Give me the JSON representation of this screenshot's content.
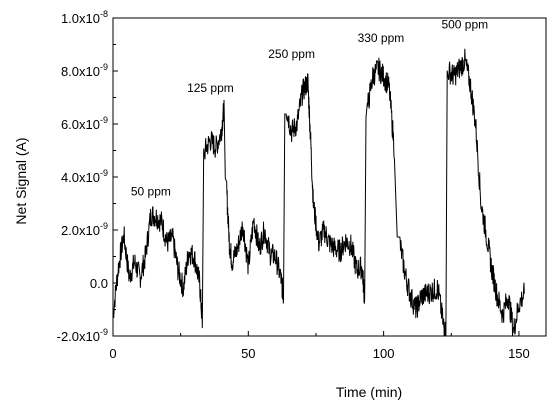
{
  "chart_data": {
    "type": "line",
    "title": "",
    "xlabel": "Time (min)",
    "ylabel": "Net Signal (A)",
    "xlim": [
      0,
      160
    ],
    "ylim": [
      -2e-09,
      1e-08
    ],
    "grid": false,
    "x_ticks": [
      0,
      50,
      100,
      150
    ],
    "x_tick_labels": [
      "0",
      "50",
      "100",
      "150"
    ],
    "y_ticks": [
      -2e-09,
      0,
      2e-09,
      4e-09,
      6e-09,
      8e-09,
      1e-08
    ],
    "y_tick_labels": [
      "-2.0x10",
      "0.0",
      "2.0x10",
      "4.0x10",
      "6.0x10",
      "8.0x10",
      "1.0x10"
    ],
    "y_tick_exponents": [
      "-9",
      "",
      "-9",
      "-9",
      "-9",
      "-9",
      "-8"
    ],
    "annotations": [
      {
        "text": "50 ppm",
        "x": 14,
        "y": 3.3e-09
      },
      {
        "text": "125 ppm",
        "x": 36,
        "y": 7.2e-09
      },
      {
        "text": "250 ppm",
        "x": 66,
        "y": 8.5e-09
      },
      {
        "text": "330 ppm",
        "x": 99,
        "y": 9.1e-09
      },
      {
        "text": "500 ppm",
        "x": 130,
        "y": 9.6e-09
      }
    ],
    "series": [
      {
        "color": "#000000",
        "x": [
          0,
          2,
          4,
          6,
          8,
          10,
          12,
          14,
          16,
          18,
          20,
          22,
          24,
          26,
          28,
          30,
          32,
          33,
          34,
          36,
          38,
          40,
          41,
          42,
          43,
          44,
          46,
          48,
          50,
          52,
          54,
          56,
          58,
          60,
          62,
          63,
          64,
          66,
          68,
          70,
          72,
          73,
          74,
          76,
          78,
          80,
          82,
          84,
          86,
          88,
          90,
          92,
          93,
          94,
          96,
          98,
          100,
          102,
          104,
          106,
          108,
          110,
          112,
          114,
          116,
          118,
          120,
          122,
          123,
          124,
          126,
          128,
          130,
          132,
          134,
          136,
          138,
          140,
          142,
          144,
          146,
          148,
          150,
          152
        ],
        "y": [
          -1.2e-09,
          6e-10,
          1.8e-09,
          2e-10,
          8e-10,
          2e-10,
          1e-09,
          2.6e-09,
          2.5e-09,
          2.3e-09,
          1.5e-09,
          1.7e-09,
          5e-10,
          -2e-10,
          1.2e-09,
          1e-09,
          0.0,
          -1.5e-09,
          5e-09,
          5.4e-09,
          5.1e-09,
          5.7e-09,
          6.6e-09,
          3.5e-09,
          1.5e-09,
          8e-10,
          1.3e-09,
          2.2e-09,
          6e-10,
          2.4e-09,
          1.3e-09,
          2e-09,
          1.1e-09,
          1e-09,
          2e-10,
          -5e-10,
          6.6e-09,
          5.7e-09,
          6e-09,
          7.2e-09,
          7.6e-09,
          5.5e-09,
          3e-09,
          1.5e-09,
          2e-09,
          1.5e-09,
          1.3e-09,
          1.2e-09,
          1.6e-09,
          1.4e-09,
          5e-10,
          6e-10,
          -6e-10,
          6.6e-09,
          7.8e-09,
          8.1e-09,
          7.8e-09,
          7.4e-09,
          5e-09,
          1.5e-09,
          3e-10,
          -5e-10,
          -1e-09,
          -5e-10,
          -4e-10,
          -3e-10,
          -2e-10,
          -1.5e-09,
          -2e-09,
          8e-09,
          7.8e-09,
          8.1e-09,
          8.4e-09,
          7.5e-09,
          6e-09,
          3e-09,
          1.8e-09,
          5e-10,
          -5e-10,
          -1.2e-09,
          -5e-10,
          -1.8e-09,
          -8e-10,
          -4e-10
        ]
      }
    ]
  }
}
